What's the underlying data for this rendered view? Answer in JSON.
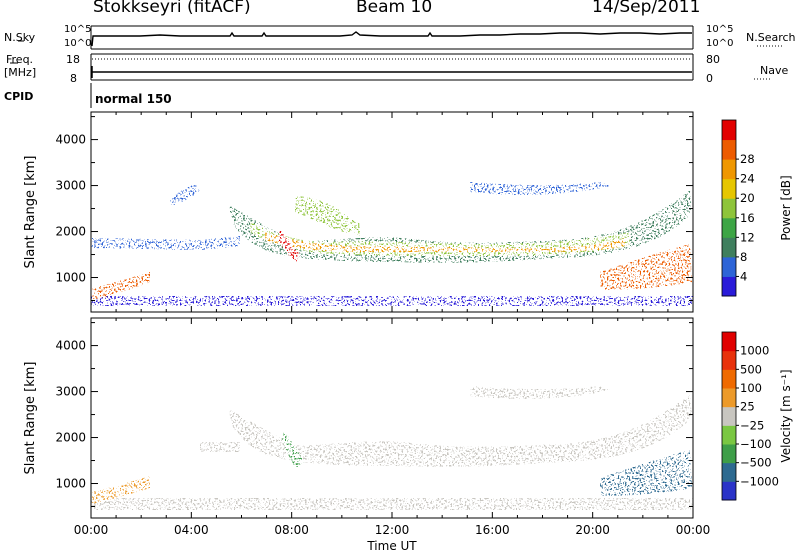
{
  "header": {
    "station": "Stokkseyri (fitACF)",
    "beam": "Beam 10",
    "date": "14/Sep/2011"
  },
  "strips": {
    "nsky_label": "N.Sky",
    "nsky_top": "10^5",
    "nsky_bottom": "10^0",
    "nsearch_label": "N.Search",
    "nsearch_top": "10^5",
    "nsearch_bottom": "10^0",
    "freq_label": "Freq.",
    "freq_unit": "[MHz]",
    "freq_top": "18",
    "freq_bottom": "8",
    "nave_label": "Nave",
    "nave_top": "80",
    "nave_bottom": "0",
    "cpid_label": "CPID",
    "cpid_value": "normal 150"
  },
  "chart_data": [
    {
      "type": "heatmap",
      "name": "power",
      "ylabel": "Slant Range [km]",
      "yticks": [
        "1000",
        "2000",
        "3000",
        "4000"
      ],
      "ylim": [
        250,
        4600
      ],
      "xlim": [
        0,
        24
      ],
      "colorbar_label": "Power [dB]",
      "colorbar_ticks": [
        "4",
        "8",
        "12",
        "16",
        "20",
        "24",
        "28"
      ],
      "colorbar_colors": [
        "#2a1bd9",
        "#2d64d7",
        "#3f7f5e",
        "#3da545",
        "#8ec43a",
        "#e6c600",
        "#ef9700",
        "#ed5b00",
        "#e20000"
      ]
    },
    {
      "type": "heatmap",
      "name": "velocity",
      "ylabel": "Slant Range [km]",
      "yticks": [
        "1000",
        "2000",
        "3000",
        "4000"
      ],
      "ylim": [
        250,
        4600
      ],
      "xlim": [
        0,
        24
      ],
      "colorbar_label": "Velocity [m s⁻¹]",
      "colorbar_ticks": [
        "1000",
        "500",
        "100",
        "25",
        "−25",
        "−100",
        "−500",
        "−1000"
      ],
      "colorbar_colors": [
        "#2a33c8",
        "#2d6a90",
        "#3e9e48",
        "#7ac742",
        "#c8c6c0",
        "#ec9a2a",
        "#ef6a00",
        "#e8320c",
        "#e00000"
      ]
    }
  ],
  "xaxis": {
    "ticks": [
      "00:00",
      "04:00",
      "08:00",
      "12:00",
      "16:00",
      "20:00",
      "00:00"
    ],
    "label": "Time UT"
  }
}
